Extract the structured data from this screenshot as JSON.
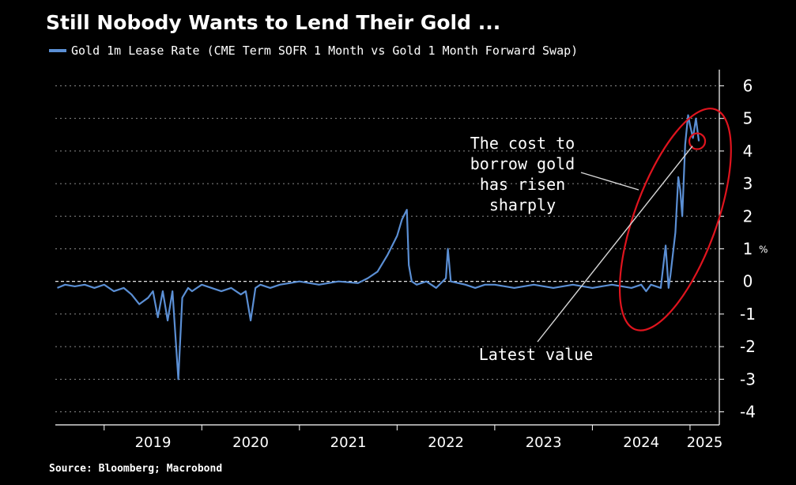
{
  "title": "Still Nobody Wants to Lend Their Gold ...",
  "legend_label": "Gold 1m Lease Rate (CME Term SOFR 1 Month vs Gold 1 Month Forward Swap)",
  "source": "Source: Bloomberg; Macrobond",
  "colors": {
    "series": "#5b8fd4",
    "background": "#000000",
    "grid": "#8a8a8a",
    "highlight": "#e0141e",
    "annotation_line": "#d9d9d9"
  },
  "chart_data": {
    "type": "line",
    "xlim": [
      2018.5,
      2025.3
    ],
    "ylim": [
      -4.4,
      6.4
    ],
    "y_ticks": [
      6,
      5,
      4,
      3,
      2,
      1,
      0,
      -1,
      -2,
      -3,
      -4
    ],
    "x_ticks": [
      "2019",
      "2020",
      "2021",
      "2022",
      "2023",
      "2024",
      "2025"
    ],
    "y_unit": "%",
    "grid": true,
    "zero_line": "dashed",
    "legend_position": "top-left",
    "annotations": [
      {
        "lines": [
          "The cost to",
          "borrow gold",
          "has risen",
          "sharply"
        ]
      },
      {
        "lines": [
          "Latest value"
        ]
      }
    ],
    "series": [
      {
        "name": "Gold 1m Lease Rate (CME Term SOFR 1 Month vs Gold 1 Month Forward Swap)",
        "x": [
          2018.52,
          2018.6,
          2018.7,
          2018.8,
          2018.9,
          2019.0,
          2019.1,
          2019.2,
          2019.28,
          2019.36,
          2019.45,
          2019.5,
          2019.55,
          2019.6,
          2019.65,
          2019.7,
          2019.76,
          2019.8,
          2019.86,
          2019.9,
          2019.95,
          2020.0,
          2020.1,
          2020.2,
          2020.3,
          2020.4,
          2020.45,
          2020.5,
          2020.55,
          2020.6,
          2020.7,
          2020.8,
          2020.9,
          2021.0,
          2021.2,
          2021.4,
          2021.6,
          2021.7,
          2021.8,
          2021.9,
          2022.0,
          2022.05,
          2022.1,
          2022.12,
          2022.15,
          2022.2,
          2022.3,
          2022.4,
          2022.5,
          2022.52,
          2022.55,
          2022.7,
          2022.8,
          2022.9,
          2023.0,
          2023.2,
          2023.4,
          2023.6,
          2023.8,
          2024.0,
          2024.2,
          2024.4,
          2024.5,
          2024.55,
          2024.6,
          2024.7,
          2024.75,
          2024.78,
          2024.8,
          2024.85,
          2024.88,
          2024.9,
          2024.92,
          2024.95,
          2024.98,
          2025.0,
          2025.03,
          2025.06,
          2025.09
        ],
        "values": [
          -0.2,
          -0.1,
          -0.15,
          -0.1,
          -0.2,
          -0.1,
          -0.3,
          -0.2,
          -0.4,
          -0.7,
          -0.5,
          -0.3,
          -1.1,
          -0.3,
          -1.2,
          -0.3,
          -3.0,
          -0.5,
          -0.2,
          -0.3,
          -0.2,
          -0.1,
          -0.2,
          -0.3,
          -0.2,
          -0.4,
          -0.3,
          -1.2,
          -0.2,
          -0.1,
          -0.2,
          -0.1,
          -0.05,
          0.0,
          -0.1,
          0.0,
          -0.05,
          0.1,
          0.3,
          0.8,
          1.4,
          1.9,
          2.2,
          0.5,
          0.0,
          -0.1,
          0.0,
          -0.2,
          0.1,
          1.0,
          0.0,
          -0.1,
          -0.2,
          -0.1,
          -0.1,
          -0.2,
          -0.1,
          -0.2,
          -0.1,
          -0.2,
          -0.1,
          -0.2,
          -0.1,
          -0.3,
          -0.1,
          -0.2,
          1.1,
          -0.2,
          0.2,
          1.5,
          3.2,
          2.8,
          2.0,
          4.2,
          5.1,
          4.8,
          4.4,
          5.0,
          4.3
        ]
      }
    ]
  }
}
